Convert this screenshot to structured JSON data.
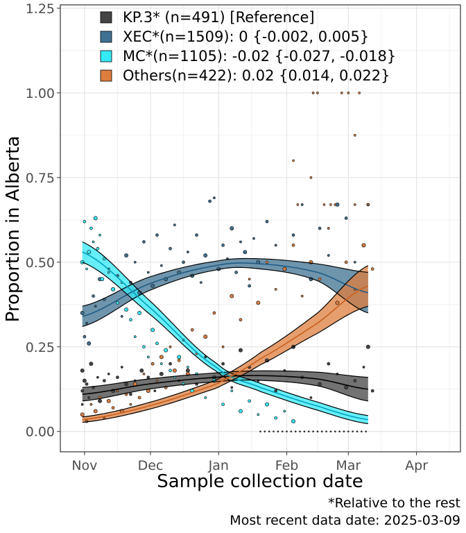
{
  "chart_data": {
    "type": "scatter",
    "xlabel": "Sample collection date",
    "ylabel": "Proportion in Alberta",
    "x_ticks": [
      "Nov",
      "Dec",
      "Jan",
      "Feb",
      "Mar",
      "Apr"
    ],
    "y_ticks": [
      "0.00",
      "0.25",
      "0.50",
      "0.75",
      "1.00",
      "1.25"
    ],
    "ylim": [
      -0.06,
      1.26
    ],
    "xlim": [
      "2024-10-21",
      "2025-04-21"
    ],
    "grid": true,
    "legend_position": "top-left",
    "legend": [
      {
        "label": "KP.3* (n=491)  [Reference]",
        "color": "#444444"
      },
      {
        "label": "XEC*(n=1509): 0 {-0.002, 0.005}",
        "color": "#3f7192"
      },
      {
        "label": "MC*(n=1105): -0.02 {-0.027, -0.018}",
        "color": "#33eaf6"
      },
      {
        "label": "Others(n=422): 0.02 {0.014, 0.022}",
        "color": "#dd7d3e"
      }
    ],
    "series": [
      {
        "label_ref": 0,
        "color": "#444444",
        "line_color": "#000000",
        "fit_x": [
          "2024-10-31",
          "2024-11-30",
          "2024-12-31",
          "2025-01-20",
          "2025-02-15",
          "2025-03-10"
        ],
        "fit_y": [
          0.11,
          0.14,
          0.16,
          0.165,
          0.155,
          0.125
        ],
        "ci_half": [
          0.02,
          0.015,
          0.013,
          0.014,
          0.02,
          0.035
        ],
        "points": [
          [
            0,
            0.18
          ],
          [
            0,
            0.12
          ],
          [
            0,
            0.08
          ],
          [
            1,
            0.15
          ],
          [
            2,
            0.14
          ],
          [
            3,
            0.1
          ],
          [
            4,
            0.2
          ],
          [
            5,
            0.13
          ],
          [
            7,
            0.16
          ],
          [
            8,
            0.09
          ],
          [
            10,
            0.15
          ],
          [
            12,
            0.17
          ],
          [
            14,
            0.12
          ],
          [
            16,
            0.16
          ],
          [
            18,
            0.19
          ],
          [
            20,
            0.14
          ],
          [
            22,
            0.11
          ],
          [
            24,
            0.15
          ],
          [
            27,
            0.18
          ],
          [
            30,
            0.16
          ],
          [
            33,
            0.12
          ],
          [
            36,
            0.17
          ],
          [
            40,
            0.2
          ],
          [
            44,
            0.15
          ],
          [
            48,
            0.18
          ],
          [
            52,
            0.14
          ],
          [
            56,
            0.22
          ],
          [
            60,
            0.16
          ],
          [
            64,
            0.2
          ],
          [
            68,
            0.13
          ],
          [
            72,
            0.24
          ],
          [
            76,
            0.19
          ],
          [
            80,
            0.15
          ],
          [
            84,
            0.21
          ],
          [
            88,
            0.12
          ],
          [
            92,
            0.18
          ],
          [
            96,
            0.25
          ],
          [
            100,
            0.16
          ],
          [
            104,
            0.1
          ],
          [
            108,
            0.14
          ],
          [
            112,
            0.2
          ],
          [
            116,
            0.17
          ],
          [
            120,
            0.13
          ],
          [
            124,
            0.15
          ],
          [
            128,
            0.19
          ],
          [
            130,
            0.25
          ],
          [
            132,
            0.12
          ]
        ]
      },
      {
        "label_ref": 1,
        "color": "#3f7192",
        "line_color": "#1f5c85",
        "fit_x": [
          "2024-10-31",
          "2024-11-30",
          "2024-12-31",
          "2025-01-20",
          "2025-02-15",
          "2025-03-10"
        ],
        "fit_y": [
          0.34,
          0.435,
          0.49,
          0.495,
          0.47,
          0.41
        ],
        "ci_half": [
          0.03,
          0.02,
          0.013,
          0.015,
          0.025,
          0.06
        ],
        "points": [
          [
            0,
            0.35
          ],
          [
            1,
            0.28
          ],
          [
            2,
            0.32
          ],
          [
            3,
            0.26
          ],
          [
            5,
            0.4
          ],
          [
            6,
            0.37
          ],
          [
            8,
            0.45
          ],
          [
            10,
            0.39
          ],
          [
            12,
            0.48
          ],
          [
            14,
            0.42
          ],
          [
            16,
            0.46
          ],
          [
            18,
            0.34
          ],
          [
            20,
            0.52
          ],
          [
            22,
            0.44
          ],
          [
            24,
            0.5
          ],
          [
            26,
            0.41
          ],
          [
            28,
            0.56
          ],
          [
            30,
            0.47
          ],
          [
            32,
            0.43
          ],
          [
            34,
            0.58
          ],
          [
            36,
            0.49
          ],
          [
            38,
            0.45
          ],
          [
            40,
            0.54
          ],
          [
            42,
            0.61
          ],
          [
            44,
            0.47
          ],
          [
            46,
            0.5
          ],
          [
            48,
            0.53
          ],
          [
            50,
            0.46
          ],
          [
            52,
            0.58
          ],
          [
            54,
            0.44
          ],
          [
            56,
            0.52
          ],
          [
            58,
            0.68
          ],
          [
            60,
            0.69
          ],
          [
            62,
            0.48
          ],
          [
            64,
            0.55
          ],
          [
            66,
            0.51
          ],
          [
            68,
            0.6
          ],
          [
            70,
            0.47
          ],
          [
            72,
            0.56
          ],
          [
            74,
            0.53
          ],
          [
            76,
            0.43
          ],
          [
            78,
            0.57
          ],
          [
            80,
            0.5
          ],
          [
            84,
            0.62
          ],
          [
            88,
            0.55
          ],
          [
            92,
            0.48
          ],
          [
            96,
            0.58
          ],
          [
            100,
            0.67
          ],
          [
            104,
            0.45
          ],
          [
            108,
            0.6
          ],
          [
            112,
            0.52
          ],
          [
            116,
            0.67
          ],
          [
            120,
            0.63
          ],
          [
            124,
            0.5
          ],
          [
            128,
            0.55
          ],
          [
            130,
            0.67
          ],
          [
            132,
            0.48
          ]
        ]
      },
      {
        "label_ref": 2,
        "color": "#33eaf6",
        "line_color": "#00a2c0",
        "fit_x": [
          "2024-10-31",
          "2024-11-30",
          "2024-12-31",
          "2025-01-20",
          "2025-02-15",
          "2025-03-10"
        ],
        "fit_y": [
          0.53,
          0.37,
          0.19,
          0.13,
          0.075,
          0.035
        ],
        "ci_half": [
          0.03,
          0.02,
          0.012,
          0.012,
          0.012,
          0.012
        ],
        "points": [
          [
            0,
            0.5
          ],
          [
            1,
            0.62
          ],
          [
            2,
            0.48
          ],
          [
            3,
            0.53
          ],
          [
            4,
            0.6
          ],
          [
            5,
            0.56
          ],
          [
            6,
            0.63
          ],
          [
            7,
            0.54
          ],
          [
            8,
            0.58
          ],
          [
            9,
            0.45
          ],
          [
            10,
            0.51
          ],
          [
            12,
            0.47
          ],
          [
            14,
            0.42
          ],
          [
            16,
            0.38
          ],
          [
            18,
            0.44
          ],
          [
            20,
            0.36
          ],
          [
            22,
            0.33
          ],
          [
            24,
            0.28
          ],
          [
            26,
            0.35
          ],
          [
            28,
            0.25
          ],
          [
            30,
            0.22
          ],
          [
            32,
            0.3
          ],
          [
            34,
            0.26
          ],
          [
            36,
            0.2
          ],
          [
            38,
            0.24
          ],
          [
            40,
            0.18
          ],
          [
            42,
            0.16
          ],
          [
            44,
            0.22
          ],
          [
            46,
            0.14
          ],
          [
            48,
            0.19
          ],
          [
            50,
            0.12
          ],
          [
            52,
            0.17
          ],
          [
            56,
            0.1
          ],
          [
            60,
            0.15
          ],
          [
            64,
            0.08
          ],
          [
            68,
            0.12
          ],
          [
            72,
            0.06
          ],
          [
            76,
            0.09
          ],
          [
            80,
            0.05
          ],
          [
            84,
            0.08
          ],
          [
            88,
            0.04
          ],
          [
            92,
            0.06
          ],
          [
            96,
            0.03
          ]
        ]
      },
      {
        "label_ref": 3,
        "color": "#dd7d3e",
        "line_color": "#c9601d",
        "fit_x": [
          "2024-10-31",
          "2024-11-30",
          "2024-12-31",
          "2025-01-20",
          "2025-02-15",
          "2025-03-10"
        ],
        "fit_y": [
          0.035,
          0.075,
          0.14,
          0.215,
          0.32,
          0.43
        ],
        "ci_half": [
          0.008,
          0.01,
          0.012,
          0.018,
          0.03,
          0.06
        ],
        "points": [
          [
            0,
            0.05
          ],
          [
            2,
            0.03
          ],
          [
            4,
            0.08
          ],
          [
            6,
            0.06
          ],
          [
            8,
            0.1
          ],
          [
            10,
            0.04
          ],
          [
            12,
            0.09
          ],
          [
            14,
            0.07
          ],
          [
            16,
            0.12
          ],
          [
            18,
            0.06
          ],
          [
            20,
            0.11
          ],
          [
            22,
            0.08
          ],
          [
            24,
            0.14
          ],
          [
            26,
            0.1
          ],
          [
            28,
            0.17
          ],
          [
            30,
            0.12
          ],
          [
            32,
            0.2
          ],
          [
            34,
            0.15
          ],
          [
            36,
            0.22
          ],
          [
            38,
            0.13
          ],
          [
            40,
            0.25
          ],
          [
            42,
            0.18
          ],
          [
            44,
            0.21
          ],
          [
            46,
            0.27
          ],
          [
            48,
            0.17
          ],
          [
            50,
            0.3
          ],
          [
            52,
            0.23
          ],
          [
            56,
            0.28
          ],
          [
            60,
            0.35
          ],
          [
            64,
            0.25
          ],
          [
            68,
            0.4
          ],
          [
            72,
            0.33
          ],
          [
            76,
            0.45
          ],
          [
            80,
            0.38
          ],
          [
            84,
            0.5
          ],
          [
            88,
            0.42
          ],
          [
            92,
            0.48
          ],
          [
            96,
            0.55
          ],
          [
            100,
            0.4
          ],
          [
            104,
            0.5
          ],
          [
            108,
            0.45
          ],
          [
            112,
            0.6
          ],
          [
            116,
            0.38
          ],
          [
            120,
            0.5
          ],
          [
            124,
            0.42
          ],
          [
            128,
            0.55
          ],
          [
            132,
            0.48
          ]
        ]
      }
    ],
    "zero_points_start": "2025-01-20",
    "extra_high_points": [
      [
        105,
        1.0
      ],
      [
        107,
        1.0
      ],
      [
        118,
        1.0
      ],
      [
        121,
        1.0
      ],
      [
        124,
        0.875
      ],
      [
        126,
        1.0
      ],
      [
        96,
        0.8
      ],
      [
        104,
        0.75
      ],
      [
        98,
        0.67
      ],
      [
        110,
        0.67
      ],
      [
        113,
        0.67
      ],
      [
        115,
        0.67
      ],
      [
        124,
        0.67
      ],
      [
        130,
        0.67
      ]
    ]
  },
  "captions": {
    "line1": "*Relative to the rest",
    "line2": "Most recent data date: 2025-03-09"
  }
}
